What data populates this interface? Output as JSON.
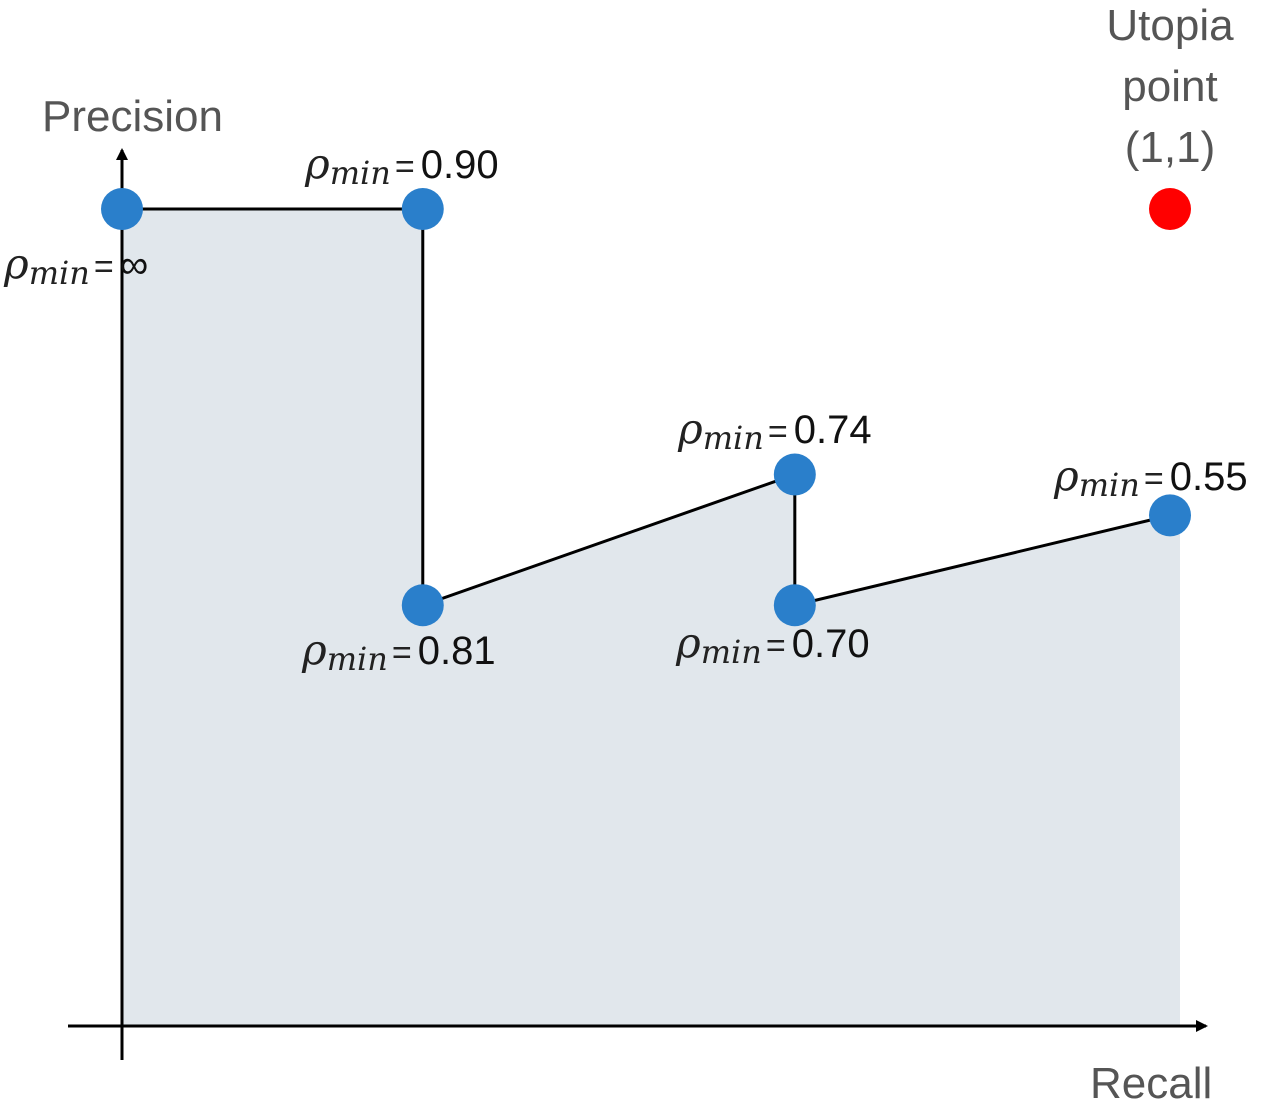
{
  "chart_data": {
    "type": "line",
    "xlabel": "Recall",
    "ylabel": "Precision",
    "xlim": [
      0,
      1
    ],
    "ylim": [
      0,
      1
    ],
    "grid": false,
    "area_fill": true,
    "colors": {
      "point": "#2a7fcb",
      "line": "#000000",
      "area": "#e1e7ec",
      "utopia": "#ff0000"
    },
    "points": [
      {
        "x": 0.0,
        "y": 1.0,
        "rho_symbol": "ρ",
        "rho_sub": "min",
        "equals": "=",
        "label": "∞"
      },
      {
        "x": 0.287,
        "y": 1.0,
        "rho_symbol": "ρ",
        "rho_sub": "min",
        "equals": "=",
        "label": "0.90"
      },
      {
        "x": 0.287,
        "y": 0.515,
        "rho_symbol": "ρ",
        "rho_sub": "min",
        "equals": "=",
        "label": "0.81"
      },
      {
        "x": 0.642,
        "y": 0.675,
        "rho_symbol": "ρ",
        "rho_sub": "min",
        "equals": "=",
        "label": "0.74"
      },
      {
        "x": 0.642,
        "y": 0.515,
        "rho_symbol": "ρ",
        "rho_sub": "min",
        "equals": "=",
        "label": "0.70"
      },
      {
        "x": 1.0,
        "y": 0.625,
        "rho_symbol": "ρ",
        "rho_sub": "min",
        "equals": "=",
        "label": "0.55"
      }
    ],
    "utopia": {
      "x": 1.0,
      "y": 1.0,
      "label_lines": [
        "Utopia",
        "point",
        "(1,1)"
      ]
    }
  }
}
